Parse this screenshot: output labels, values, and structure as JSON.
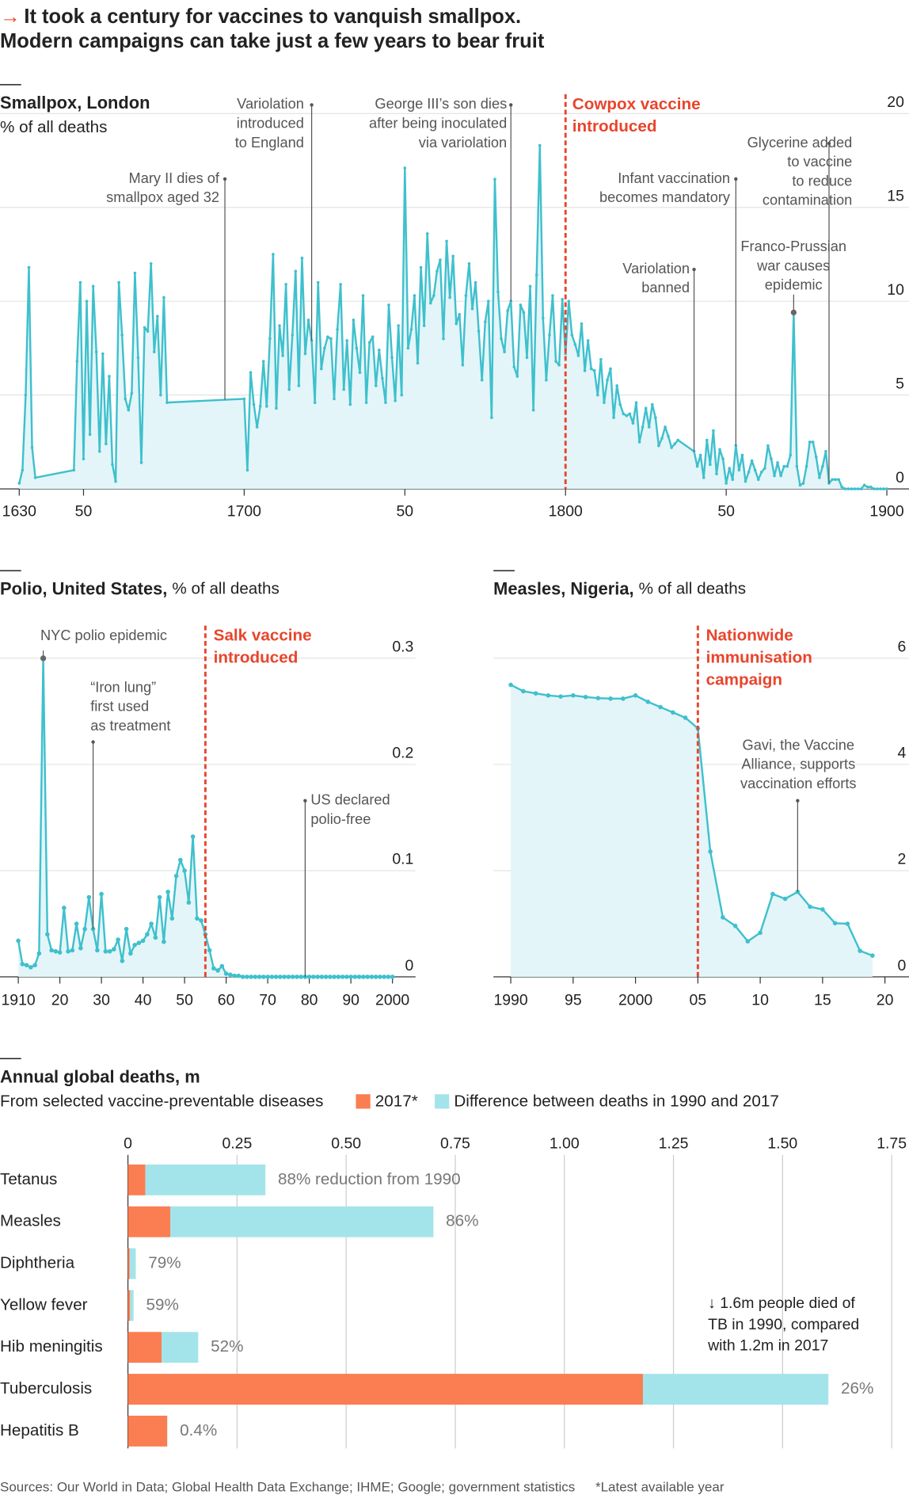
{
  "title_arrow": "→",
  "title": [
    "It took a century for vaccines to vanquish smallpox.",
    "Modern campaigns can take just a few years to bear fruit"
  ],
  "footer": {
    "sources": "Sources: Our World in Data; Global Health Data Exchange; IHME; Google; government statistics",
    "note": "*Latest available year"
  },
  "chart_data": [
    {
      "type": "line",
      "title": "Smallpox, London",
      "subtitle": "% of all deaths",
      "x": [
        1630,
        1631,
        1632,
        1633,
        1634,
        1635,
        1647,
        1648,
        1649,
        1650,
        1651,
        1652,
        1653,
        1654,
        1655,
        1656,
        1657,
        1658,
        1659,
        1660,
        1661,
        1662,
        1663,
        1664,
        1665,
        1666,
        1667,
        1668,
        1669,
        1670,
        1671,
        1672,
        1673,
        1674,
        1675,
        1676,
        1700,
        1701,
        1702,
        1703,
        1704,
        1705,
        1706,
        1707,
        1708,
        1709,
        1710,
        1711,
        1712,
        1713,
        1714,
        1715,
        1716,
        1717,
        1718,
        1719,
        1720,
        1721,
        1722,
        1723,
        1724,
        1725,
        1726,
        1727,
        1728,
        1729,
        1730,
        1731,
        1732,
        1733,
        1734,
        1735,
        1736,
        1737,
        1738,
        1739,
        1740,
        1741,
        1742,
        1743,
        1744,
        1745,
        1746,
        1747,
        1748,
        1749,
        1750,
        1751,
        1752,
        1753,
        1754,
        1755,
        1756,
        1757,
        1758,
        1759,
        1760,
        1761,
        1762,
        1763,
        1764,
        1765,
        1766,
        1767,
        1768,
        1769,
        1770,
        1771,
        1772,
        1773,
        1774,
        1775,
        1776,
        1777,
        1778,
        1779,
        1780,
        1781,
        1782,
        1783,
        1784,
        1785,
        1786,
        1787,
        1788,
        1789,
        1790,
        1791,
        1792,
        1793,
        1794,
        1795,
        1796,
        1797,
        1798,
        1799,
        1800,
        1801,
        1802,
        1803,
        1804,
        1805,
        1806,
        1807,
        1808,
        1809,
        1810,
        1811,
        1812,
        1813,
        1814,
        1815,
        1816,
        1817,
        1818,
        1819,
        1820,
        1821,
        1822,
        1823,
        1824,
        1825,
        1826,
        1827,
        1828,
        1829,
        1830,
        1831,
        1832,
        1833,
        1834,
        1835,
        1840,
        1841,
        1842,
        1843,
        1844,
        1845,
        1846,
        1847,
        1848,
        1849,
        1850,
        1851,
        1852,
        1853,
        1854,
        1855,
        1856,
        1857,
        1858,
        1859,
        1860,
        1861,
        1862,
        1863,
        1864,
        1865,
        1866,
        1867,
        1868,
        1869,
        1870,
        1871,
        1872,
        1873,
        1874,
        1875,
        1876,
        1877,
        1878,
        1879,
        1880,
        1881,
        1882,
        1883,
        1884,
        1885,
        1886,
        1887,
        1888,
        1889,
        1890,
        1891,
        1892,
        1893,
        1894,
        1895,
        1896,
        1897,
        1898,
        1899,
        1900
      ],
      "series": [
        {
          "color": "#3fc0cd",
          "fill": "#e3f5f8",
          "values": [
            0.3,
            1.0,
            5.0,
            11.8,
            2.2,
            0.6,
            1.0,
            6.8,
            11.0,
            1.6,
            10.0,
            2.9,
            10.8,
            7.3,
            2.0,
            7.2,
            2.4,
            6.0,
            1.3,
            0.4,
            11.0,
            8.2,
            4.8,
            4.2,
            5.1,
            11.5,
            7.0,
            1.4,
            8.6,
            8.4,
            12.0,
            7.3,
            9.2,
            5.0,
            10.2,
            4.6,
            4.8,
            1.0,
            6.2,
            4.5,
            3.3,
            4.4,
            6.8,
            4.4,
            8.0,
            12.5,
            4.3,
            8.7,
            7.1,
            10.9,
            5.3,
            8.2,
            11.6,
            5.5,
            12.3,
            7.2,
            9.0,
            7.9,
            4.6,
            11.0,
            6.4,
            7.5,
            8.1,
            8.0,
            4.8,
            8.5,
            10.9,
            5.3,
            7.9,
            4.5,
            9.0,
            7.5,
            6.2,
            10.3,
            4.6,
            7.8,
            8.1,
            5.5,
            7.4,
            5.9,
            4.6,
            9.8,
            7.0,
            4.7,
            8.7,
            5.0,
            17.1,
            7.5,
            8.5,
            10.3,
            6.7,
            11.8,
            8.7,
            13.6,
            9.9,
            10.3,
            11.6,
            12.2,
            8.0,
            13.2,
            10.2,
            12.4,
            8.8,
            9.3,
            6.6,
            10.3,
            12.0,
            9.6,
            11.0,
            8.4,
            5.8,
            8.9,
            10.0,
            3.8,
            16.5,
            10.5,
            8.0,
            7.3,
            9.5,
            10.0,
            6.5,
            6.0,
            9.8,
            9.4,
            7.0,
            10.8,
            4.2,
            11.4,
            18.3,
            9.1,
            5.8,
            8.2,
            10.3,
            6.8,
            6.6,
            10.1,
            7.2,
            10.0,
            8.2,
            7.7,
            7.1,
            8.8,
            6.3,
            7.9,
            6.4,
            6.3,
            5.0,
            6.9,
            4.6,
            5.8,
            6.4,
            3.8,
            5.5,
            4.5,
            4.0,
            3.9,
            4.0,
            3.5,
            4.6,
            2.5,
            3.3,
            4.3,
            3.3,
            4.5,
            3.8,
            2.3,
            2.7,
            3.3,
            2.8,
            2.2,
            2.4,
            2.6,
            2.0,
            1.2,
            1.8,
            0.6,
            2.6,
            1.3,
            3.1,
            0.8,
            2.1,
            1.6,
            0.3,
            1.1,
            0.5,
            2.3,
            1.0,
            1.8,
            0.4,
            0.9,
            1.5,
            1.0,
            0.5,
            0.9,
            1.1,
            2.3,
            1.6,
            0.7,
            1.4,
            0.7,
            1.2,
            1.2,
            1.8,
            9.4,
            1.2,
            0.2,
            0.3,
            1.2,
            2.5,
            2.5,
            1.7,
            0.6,
            1.2,
            2.0,
            0.3,
            0.5,
            0.5,
            0.5,
            0.1,
            0,
            0,
            0,
            0,
            0,
            0,
            0.2,
            0.1,
            0.1,
            0,
            0,
            0,
            0,
            0
          ]
        }
      ],
      "xlim": [
        1630,
        1900
      ],
      "ylim": [
        0,
        20
      ],
      "xticks": [
        1630,
        {
          "value": 1650,
          "label": "50"
        },
        1700,
        {
          "value": 1750,
          "label": "50"
        },
        1800,
        {
          "value": 1850,
          "label": "50"
        },
        1900
      ],
      "yticks": [
        0,
        5,
        10,
        15,
        20
      ],
      "grid": true,
      "annotations": [
        {
          "x": 1694,
          "text": [
            "Mary II dies of",
            "smallpox aged 32"
          ]
        },
        {
          "x": 1721,
          "text": [
            "Variolation",
            "introduced",
            "to England"
          ]
        },
        {
          "x": 1783,
          "text": [
            "George III’s son dies",
            "after being inoculated",
            "via variolation"
          ]
        },
        {
          "x": 1800,
          "text": [
            "Cowpox vaccine",
            "introduced"
          ],
          "color": "#e8452c"
        },
        {
          "x": 1840,
          "text": [
            "Variolation",
            "banned"
          ]
        },
        {
          "x": 1853,
          "text": [
            "Infant vaccination",
            "becomes mandatory"
          ]
        },
        {
          "x": 1871,
          "text": [
            "Franco-Prussian",
            "war causes",
            "epidemic"
          ]
        },
        {
          "x": 1882,
          "text": [
            "Glycerine added",
            "to vaccine",
            "to reduce",
            "contamination"
          ]
        }
      ]
    },
    {
      "type": "line",
      "title": "Polio, United States,",
      "subtitle": "% of all deaths",
      "x": [
        1910,
        1911,
        1912,
        1913,
        1914,
        1915,
        1916,
        1917,
        1918,
        1919,
        1920,
        1921,
        1922,
        1923,
        1924,
        1925,
        1926,
        1927,
        1928,
        1929,
        1930,
        1931,
        1932,
        1933,
        1934,
        1935,
        1936,
        1937,
        1938,
        1939,
        1940,
        1941,
        1942,
        1943,
        1944,
        1945,
        1946,
        1947,
        1948,
        1949,
        1950,
        1951,
        1952,
        1953,
        1954,
        1955,
        1956,
        1957,
        1958,
        1959,
        1960,
        1961,
        1962,
        1963,
        1964,
        1965,
        1966,
        1967,
        1968,
        1969,
        1970,
        1971,
        1972,
        1973,
        1974,
        1975,
        1976,
        1977,
        1978,
        1979,
        1980,
        1981,
        1982,
        1983,
        1984,
        1985,
        1986,
        1987,
        1988,
        1989,
        1990,
        1991,
        1992,
        1993,
        1994,
        1995,
        1996,
        1997,
        1998,
        1999,
        2000
      ],
      "series": [
        {
          "color": "#3fc0cd",
          "fill": "#e3f5f8",
          "values": [
            0.034,
            0.012,
            0.011,
            0.009,
            0.011,
            0.022,
            0.3,
            0.04,
            0.025,
            0.024,
            0.023,
            0.065,
            0.024,
            0.025,
            0.05,
            0.027,
            0.045,
            0.075,
            0.045,
            0.025,
            0.078,
            0.024,
            0.024,
            0.026,
            0.035,
            0.015,
            0.045,
            0.022,
            0.03,
            0.032,
            0.034,
            0.04,
            0.05,
            0.037,
            0.075,
            0.033,
            0.08,
            0.055,
            0.095,
            0.11,
            0.1,
            0.07,
            0.132,
            0.055,
            0.053,
            0.04,
            0.025,
            0.008,
            0.006,
            0.01,
            0.003,
            0.002,
            0.001,
            0.001,
            0,
            0,
            0,
            0,
            0,
            0,
            0,
            0,
            0,
            0,
            0,
            0,
            0,
            0,
            0,
            0,
            0,
            0,
            0,
            0,
            0,
            0,
            0,
            0,
            0,
            0,
            0,
            0,
            0,
            0,
            0,
            0,
            0,
            0,
            0,
            0,
            0
          ]
        }
      ],
      "xlim": [
        1910,
        2000
      ],
      "ylim": [
        0,
        0.3
      ],
      "xticks": [
        1910,
        {
          "value": 1920,
          "label": "20"
        },
        {
          "value": 1930,
          "label": "30"
        },
        {
          "value": 1940,
          "label": "40"
        },
        {
          "value": 1950,
          "label": "50"
        },
        {
          "value": 1960,
          "label": "60"
        },
        {
          "value": 1970,
          "label": "70"
        },
        {
          "value": 1980,
          "label": "80"
        },
        {
          "value": 1990,
          "label": "90"
        },
        2000
      ],
      "yticks": [
        0,
        0.1,
        0.2,
        0.3
      ],
      "grid": true,
      "annotations": [
        {
          "x": 1916,
          "text": [
            "NYC polio epidemic"
          ]
        },
        {
          "x": 1928,
          "text": [
            "“Iron lung”",
            "first used",
            "as treatment"
          ]
        },
        {
          "x": 1955,
          "text": [
            "Salk vaccine",
            "introduced"
          ],
          "color": "#e8452c"
        },
        {
          "x": 1979,
          "text": [
            "US declared",
            "polio-free"
          ]
        }
      ]
    },
    {
      "type": "line",
      "title": "Measles, Nigeria,",
      "subtitle": "% of all deaths",
      "x": [
        1990,
        1991,
        1992,
        1993,
        1994,
        1995,
        1996,
        1997,
        1998,
        1999,
        2000,
        2001,
        2002,
        2003,
        2004,
        2005,
        2006,
        2007,
        2008,
        2009,
        2010,
        2011,
        2012,
        2013,
        2014,
        2015,
        2016,
        2017,
        2018,
        2019
      ],
      "series": [
        {
          "color": "#3fc0cd",
          "fill": "#e3f5f8",
          "values": [
            5.5,
            5.38,
            5.34,
            5.3,
            5.28,
            5.3,
            5.27,
            5.25,
            5.24,
            5.24,
            5.3,
            5.18,
            5.08,
            4.98,
            4.88,
            4.68,
            2.36,
            1.12,
            0.96,
            0.67,
            0.83,
            1.56,
            1.47,
            1.6,
            1.32,
            1.27,
            1.01,
            1.0,
            0.49,
            0.4
          ]
        }
      ],
      "xlim": [
        1990,
        2020
      ],
      "ylim": [
        0,
        6
      ],
      "xticks": [
        1990,
        {
          "value": 1995,
          "label": "95"
        },
        2000,
        {
          "value": 2005,
          "label": "05"
        },
        {
          "value": 2010,
          "label": "10"
        },
        {
          "value": 2015,
          "label": "15"
        },
        {
          "value": 2020,
          "label": "20"
        }
      ],
      "yticks": [
        0,
        2,
        4,
        6
      ],
      "grid": true,
      "annotations": [
        {
          "x": 2005,
          "text": [
            "Nationwide",
            "immunisation",
            "campaign"
          ],
          "color": "#e8452c"
        },
        {
          "x": 2013,
          "text": [
            "Gavi, the Vaccine",
            "Alliance, supports",
            "vaccination efforts"
          ]
        }
      ]
    },
    {
      "type": "bar",
      "stacked": true,
      "title": "Annual global deaths, m",
      "subtitle": "From selected vaccine-preventable diseases",
      "categories": [
        "Tetanus",
        "Measles",
        "Diphtheria",
        "Yellow fever",
        "Hib meningitis",
        "Tuberculosis",
        "Hepatitis B"
      ],
      "series": [
        {
          "name": "2017*",
          "color": "#fb7d52",
          "values": [
            0.04,
            0.097,
            0.004,
            0.005,
            0.077,
            1.18,
            0.09
          ]
        },
        {
          "name": "Difference between deaths in 1990 and 2017",
          "color": "#a3e4ea",
          "values": [
            0.275,
            0.603,
            0.014,
            0.008,
            0.084,
            0.425,
            0.0004
          ]
        }
      ],
      "reduction": {
        "values": [
          88,
          86,
          79,
          59,
          52,
          26,
          0.4
        ],
        "value_labels": [
          "88% reduction from 1990",
          "86%",
          "79%",
          "59%",
          "52%",
          "26%",
          "0.4%"
        ]
      },
      "xlim": [
        0,
        1.75
      ],
      "xticks": [
        0,
        {
          "value": 0.25,
          "label": "0.25"
        },
        {
          "value": 0.5,
          "label": "0.50"
        },
        0.75,
        {
          "value": 1,
          "label": "1.00"
        },
        1.25,
        {
          "value": 1.5,
          "label": "1.50"
        },
        1.75
      ],
      "grid": true,
      "annotation": [
        "↓ 1.6m people died of",
        "TB in 1990, compared",
        "with 1.2m in 2017"
      ]
    }
  ]
}
